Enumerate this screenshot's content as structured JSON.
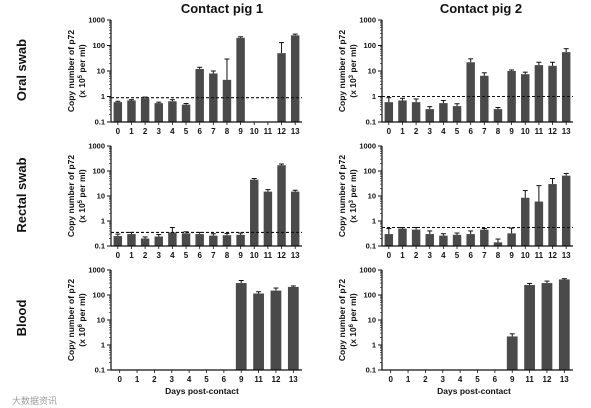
{
  "figure": {
    "column_titles": [
      "Contact pig 1",
      "Contact pig 2"
    ],
    "row_labels": [
      "Oral swab",
      "Rectal swab",
      "Blood"
    ],
    "x_axis_label": "Days post-contact",
    "watermark": "大数据资讯"
  },
  "chart_data": [
    {
      "type": "bar",
      "panel": "Oral swab - Contact pig 1",
      "ylabel_line1": "Copy number of p72",
      "ylabel_line2": "(x 10",
      "ylabel_exp": "5",
      "ylabel_tail": " per ml)",
      "yscale": "log",
      "ylim": [
        0.1,
        1000
      ],
      "yticks": [
        "0.1",
        "1",
        "10",
        "100",
        "1000"
      ],
      "categories": [
        "0",
        "1",
        "2",
        "3",
        "4",
        "5",
        "6",
        "7",
        "8",
        "9",
        "10",
        "11",
        "12",
        "13"
      ],
      "values": [
        0.6,
        0.7,
        0.85,
        0.55,
        0.65,
        0.48,
        12,
        8,
        4.5,
        200,
        null,
        null,
        50,
        250
      ],
      "errors": [
        0.05,
        0.05,
        0.1,
        0.05,
        0.1,
        0.05,
        2,
        2,
        25,
        20,
        null,
        null,
        80,
        30
      ],
      "threshold": 0.9
    },
    {
      "type": "bar",
      "panel": "Oral swab - Contact pig 2",
      "ylabel_line1": "Copy number of p72",
      "ylabel_line2": "(x 10",
      "ylabel_exp": "3",
      "ylabel_tail": " per ml)",
      "yscale": "log",
      "ylim": [
        0.1,
        1000
      ],
      "yticks": [
        "0.1",
        "1",
        "10",
        "100",
        "1000"
      ],
      "categories": [
        "0",
        "1",
        "2",
        "3",
        "4",
        "5",
        "6",
        "7",
        "8",
        "9",
        "10",
        "11",
        "12",
        "13"
      ],
      "values": [
        0.6,
        0.7,
        0.6,
        0.32,
        0.55,
        0.42,
        22,
        6.5,
        0.32,
        10,
        7.5,
        17,
        16,
        55
      ],
      "errors": [
        0.3,
        0.15,
        0.2,
        0.08,
        0.15,
        0.1,
        8,
        2,
        0.05,
        1,
        1.5,
        5,
        6,
        20
      ],
      "threshold": 1.0
    },
    {
      "type": "bar",
      "panel": "Rectal swab - Contact pig 1",
      "ylabel_line1": "Copy number of p72",
      "ylabel_line2": "(x 10",
      "ylabel_exp": "5",
      "ylabel_tail": " per ml)",
      "yscale": "log",
      "ylim": [
        0.1,
        1000
      ],
      "yticks": [
        "0.1",
        "1",
        "10",
        "100",
        "1000"
      ],
      "categories": [
        "0",
        "1",
        "2",
        "3",
        "4",
        "5",
        "6",
        "7",
        "8",
        "9",
        "10",
        "11",
        "12",
        "13"
      ],
      "values": [
        0.25,
        0.3,
        0.2,
        0.24,
        0.35,
        0.32,
        0.3,
        0.26,
        0.27,
        0.28,
        45,
        15,
        170,
        15
      ],
      "errors": [
        0.05,
        0.05,
        0.03,
        0.05,
        0.2,
        0.05,
        0.05,
        0.05,
        0.05,
        0.05,
        5,
        3,
        20,
        2
      ],
      "threshold": 0.35
    },
    {
      "type": "bar",
      "panel": "Rectal swab - Contact pig 2",
      "ylabel_line1": "Copy number of p72",
      "ylabel_line2": "(x 10",
      "ylabel_exp": "3",
      "ylabel_tail": " per ml)",
      "yscale": "log",
      "ylim": [
        0.1,
        1000
      ],
      "yticks": [
        "0.1",
        "1",
        "10",
        "100",
        "1000"
      ],
      "categories": [
        "0",
        "1",
        "2",
        "3",
        "4",
        "5",
        "6",
        "7",
        "8",
        "9",
        "10",
        "11",
        "12",
        "13"
      ],
      "values": [
        0.3,
        0.5,
        0.45,
        0.3,
        0.26,
        0.28,
        0.3,
        0.45,
        0.14,
        0.32,
        8.5,
        6,
        30,
        65
      ],
      "errors": [
        0.2,
        0.05,
        0.1,
        0.1,
        0.05,
        0.05,
        0.1,
        0.05,
        0.05,
        0.2,
        8,
        20,
        20,
        15
      ],
      "threshold": 0.55
    },
    {
      "type": "bar",
      "panel": "Blood - Contact pig 1",
      "ylabel_line1": "Copy number of p72",
      "ylabel_line2": "(x 10",
      "ylabel_exp": "6",
      "ylabel_tail": " per ml)",
      "yscale": "log",
      "ylim": [
        0.1,
        1000
      ],
      "yticks": [
        "0.1",
        "1",
        "10",
        "100",
        "1000"
      ],
      "categories": [
        "0",
        "1",
        "2",
        "3",
        "4",
        "5",
        "6",
        "9",
        "11",
        "12",
        "13"
      ],
      "values": [
        null,
        null,
        null,
        null,
        null,
        null,
        null,
        300,
        115,
        150,
        210
      ],
      "errors": [
        null,
        null,
        null,
        null,
        null,
        null,
        null,
        80,
        20,
        40,
        20
      ],
      "threshold": 0.1
    },
    {
      "type": "bar",
      "panel": "Blood - Contact pig 2",
      "ylabel_line1": "Copy number of p72",
      "ylabel_line2": "(x 10",
      "ylabel_exp": "6",
      "ylabel_tail": " per ml)",
      "yscale": "log",
      "ylim": [
        0.1,
        1000
      ],
      "yticks": [
        "0.1",
        "1",
        "10",
        "100",
        "1000"
      ],
      "categories": [
        "0",
        "1",
        "2",
        "3",
        "4",
        "5",
        "6",
        "9",
        "11",
        "12",
        "13"
      ],
      "values": [
        null,
        null,
        null,
        null,
        null,
        null,
        null,
        2.2,
        250,
        300,
        420
      ],
      "errors": [
        null,
        null,
        null,
        null,
        null,
        null,
        null,
        0.6,
        40,
        60,
        30
      ],
      "threshold": 0.1
    }
  ]
}
